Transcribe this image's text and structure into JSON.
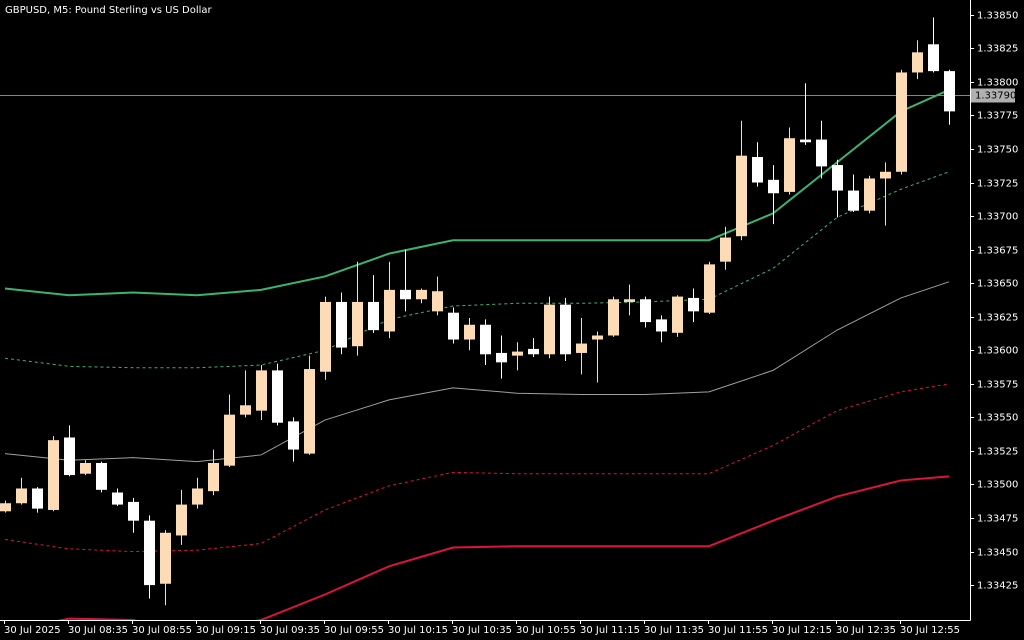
{
  "chart_data": {
    "type": "candlestick",
    "title": "GBPUSD, M5:  Pound Sterling vs US Dollar",
    "categories": [
      "30 Jul 2025",
      null,
      null,
      null,
      "30 Jul 08:35",
      null,
      null,
      null,
      "30 Jul 08:55",
      null,
      null,
      null,
      "30 Jul 09:15",
      null,
      null,
      null,
      "30 Jul 09:35",
      null,
      null,
      null,
      "30 Jul 09:55",
      null,
      null,
      null,
      "30 Jul 10:15",
      null,
      null,
      null,
      "30 Jul 10:35",
      null,
      null,
      null,
      "30 Jul 10:55",
      null,
      null,
      null,
      "30 Jul 11:15",
      null,
      null,
      null,
      "30 Jul 11:35",
      null,
      null,
      null,
      "30 Jul 11:55",
      null,
      null,
      null,
      "30 Jul 12:15",
      null,
      null,
      null,
      "30 Jul 12:35",
      null,
      null,
      null,
      "30 Jul 12:55",
      null,
      null,
      null
    ],
    "open": [
      1.3348,
      1.33486,
      1.33497,
      1.33481,
      1.33535,
      1.33508,
      1.33516,
      1.33494,
      1.33487,
      1.33473,
      1.33426,
      1.33462,
      1.33485,
      1.33495,
      1.33514,
      1.33552,
      1.33555,
      1.33585,
      1.33547,
      1.33523,
      1.33584,
      1.33636,
      1.33603,
      1.33636,
      1.33614,
      1.33645,
      1.33638,
      1.33629,
      1.33628,
      1.33608,
      1.33619,
      1.33598,
      1.33596,
      1.33601,
      1.33597,
      1.33634,
      1.33598,
      1.33608,
      1.33611,
      1.33636,
      1.33638,
      1.33623,
      1.33613,
      1.33639,
      1.33628,
      1.33666,
      1.33685,
      1.33744,
      1.33727,
      1.33718,
      1.33757,
      1.33757,
      1.33738,
      1.33719,
      1.33704,
      1.33728,
      1.33733,
      1.33807,
      1.33828,
      1.33808
    ],
    "high": [
      1.33488,
      1.33505,
      1.33498,
      1.33536,
      1.33544,
      1.33518,
      1.33517,
      1.33497,
      1.3349,
      1.33477,
      1.33466,
      1.33496,
      1.33505,
      1.33526,
      1.33567,
      1.33585,
      1.33589,
      1.3359,
      1.3355,
      1.33596,
      1.3364,
      1.33643,
      1.33666,
      1.33656,
      1.33666,
      1.33675,
      1.33646,
      1.33655,
      1.33632,
      1.33624,
      1.33623,
      1.33611,
      1.33606,
      1.33609,
      1.3364,
      1.33639,
      1.33624,
      1.33614,
      1.3364,
      1.33649,
      1.3364,
      1.33626,
      1.33641,
      1.33646,
      1.33666,
      1.33692,
      1.33771,
      1.33755,
      1.33738,
      1.33766,
      1.33799,
      1.33771,
      1.33742,
      1.33731,
      1.3373,
      1.3374,
      1.33809,
      1.33831,
      1.33848,
      1.33809
    ],
    "low": [
      1.33479,
      1.33485,
      1.33479,
      1.3348,
      1.33506,
      1.33507,
      1.33494,
      1.33484,
      1.33464,
      1.33415,
      1.3341,
      1.33455,
      1.33482,
      1.33492,
      1.33513,
      1.3355,
      1.33548,
      1.33544,
      1.33517,
      1.33522,
      1.33578,
      1.33597,
      1.33596,
      1.33613,
      1.33609,
      1.33629,
      1.33635,
      1.33626,
      1.33605,
      1.336,
      1.33589,
      1.33579,
      1.33585,
      1.33595,
      1.33594,
      1.33592,
      1.33582,
      1.33576,
      1.3361,
      1.33626,
      1.33617,
      1.33606,
      1.3361,
      1.33621,
      1.33627,
      1.3366,
      1.33682,
      1.33722,
      1.33694,
      1.33716,
      1.33753,
      1.33728,
      1.33699,
      1.33703,
      1.33702,
      1.33693,
      1.33731,
      1.33802,
      1.33807,
      1.33768
    ],
    "close": [
      1.33486,
      1.33497,
      1.33482,
      1.33533,
      1.33507,
      1.33516,
      1.33496,
      1.33485,
      1.33473,
      1.33425,
      1.33464,
      1.33485,
      1.33497,
      1.33516,
      1.33552,
      1.33559,
      1.33585,
      1.33546,
      1.33526,
      1.33586,
      1.33636,
      1.33602,
      1.33636,
      1.33615,
      1.33645,
      1.33638,
      1.33645,
      1.33644,
      1.33608,
      1.33619,
      1.33597,
      1.33591,
      1.33599,
      1.33597,
      1.33634,
      1.33597,
      1.33605,
      1.33611,
      1.33638,
      1.33638,
      1.33621,
      1.33614,
      1.3364,
      1.33629,
      1.33664,
      1.33684,
      1.33745,
      1.33725,
      1.33717,
      1.33758,
      1.33755,
      1.33737,
      1.33719,
      1.33704,
      1.33728,
      1.33733,
      1.33807,
      1.33822,
      1.33808,
      1.33778
    ],
    "up_color": "#fddcb5",
    "down_color": "#ffffff",
    "bands": [
      {
        "color": "#3cb371",
        "width": 2,
        "dashed": false,
        "x": [
          0,
          4,
          8,
          12,
          16,
          20,
          24,
          28,
          32,
          36,
          40,
          44,
          48,
          52,
          56,
          59
        ],
        "values": [
          1.33646,
          1.33641,
          1.33643,
          1.33641,
          1.33645,
          1.33655,
          1.33672,
          1.33682,
          1.33682,
          1.33682,
          1.33682,
          1.33682,
          1.33702,
          1.3374,
          1.33778,
          1.33794
        ]
      },
      {
        "color": "#3cb371",
        "width": 1,
        "dashed": true,
        "x": [
          0,
          4,
          8,
          12,
          16,
          20,
          24,
          28,
          32,
          36,
          40,
          44,
          48,
          52,
          56,
          59
        ],
        "values": [
          1.33594,
          1.33588,
          1.33587,
          1.33587,
          1.33589,
          1.336,
          1.33623,
          1.33633,
          1.33635,
          1.33635,
          1.33636,
          1.33638,
          1.33661,
          1.33699,
          1.3372,
          1.33733
        ]
      },
      {
        "color": "#a0a0a0",
        "width": 1,
        "dashed": false,
        "x": [
          0,
          4,
          8,
          12,
          16,
          20,
          24,
          28,
          32,
          36,
          40,
          44,
          48,
          52,
          56,
          59
        ],
        "values": [
          1.33523,
          1.33518,
          1.3352,
          1.33517,
          1.33522,
          1.33548,
          1.33563,
          1.33572,
          1.33568,
          1.33567,
          1.33567,
          1.33569,
          1.33585,
          1.33615,
          1.33639,
          1.33651
        ]
      },
      {
        "color": "#dc143c",
        "width": 1,
        "dashed": true,
        "x": [
          0,
          4,
          8,
          12,
          16,
          20,
          24,
          28,
          32,
          36,
          40,
          44,
          48,
          52,
          56,
          59
        ],
        "values": [
          1.33459,
          1.33452,
          1.3345,
          1.33451,
          1.33456,
          1.33481,
          1.33499,
          1.33509,
          1.33508,
          1.33508,
          1.33508,
          1.33508,
          1.33529,
          1.33555,
          1.33569,
          1.33575
        ]
      },
      {
        "color": "#dc143c",
        "width": 2,
        "dashed": false,
        "x": [
          0,
          4,
          8,
          12,
          16,
          20,
          24,
          28,
          32,
          36,
          40,
          44,
          48,
          52,
          56,
          59
        ],
        "values": [
          1.3339,
          1.334,
          1.33399,
          1.33389,
          1.33399,
          1.33418,
          1.33439,
          1.33453,
          1.33454,
          1.33454,
          1.33454,
          1.33454,
          1.33473,
          1.33491,
          1.33503,
          1.33506
        ]
      }
    ],
    "bid": {
      "value": 1.3379,
      "label": "1.33790"
    },
    "ylim": [
      1.33399,
      1.33861
    ],
    "yticks": [
      {
        "value": 1.3385,
        "label": "1.33850"
      },
      1.33825,
      {
        "value": 1.338,
        "label": "1.33800"
      },
      1.33775,
      {
        "value": 1.3375,
        "label": "1.33750"
      },
      1.33725,
      {
        "value": 1.337,
        "label": "1.33700"
      },
      1.33675,
      {
        "value": 1.3365,
        "label": "1.33650"
      },
      1.33625,
      {
        "value": 1.336,
        "label": "1.33600"
      },
      1.33575,
      {
        "value": 1.3355,
        "label": "1.33550"
      },
      1.33525,
      {
        "value": 1.335,
        "label": "1.33500"
      },
      1.33475,
      {
        "value": 1.3345,
        "label": "1.33450"
      },
      1.33425
    ]
  }
}
